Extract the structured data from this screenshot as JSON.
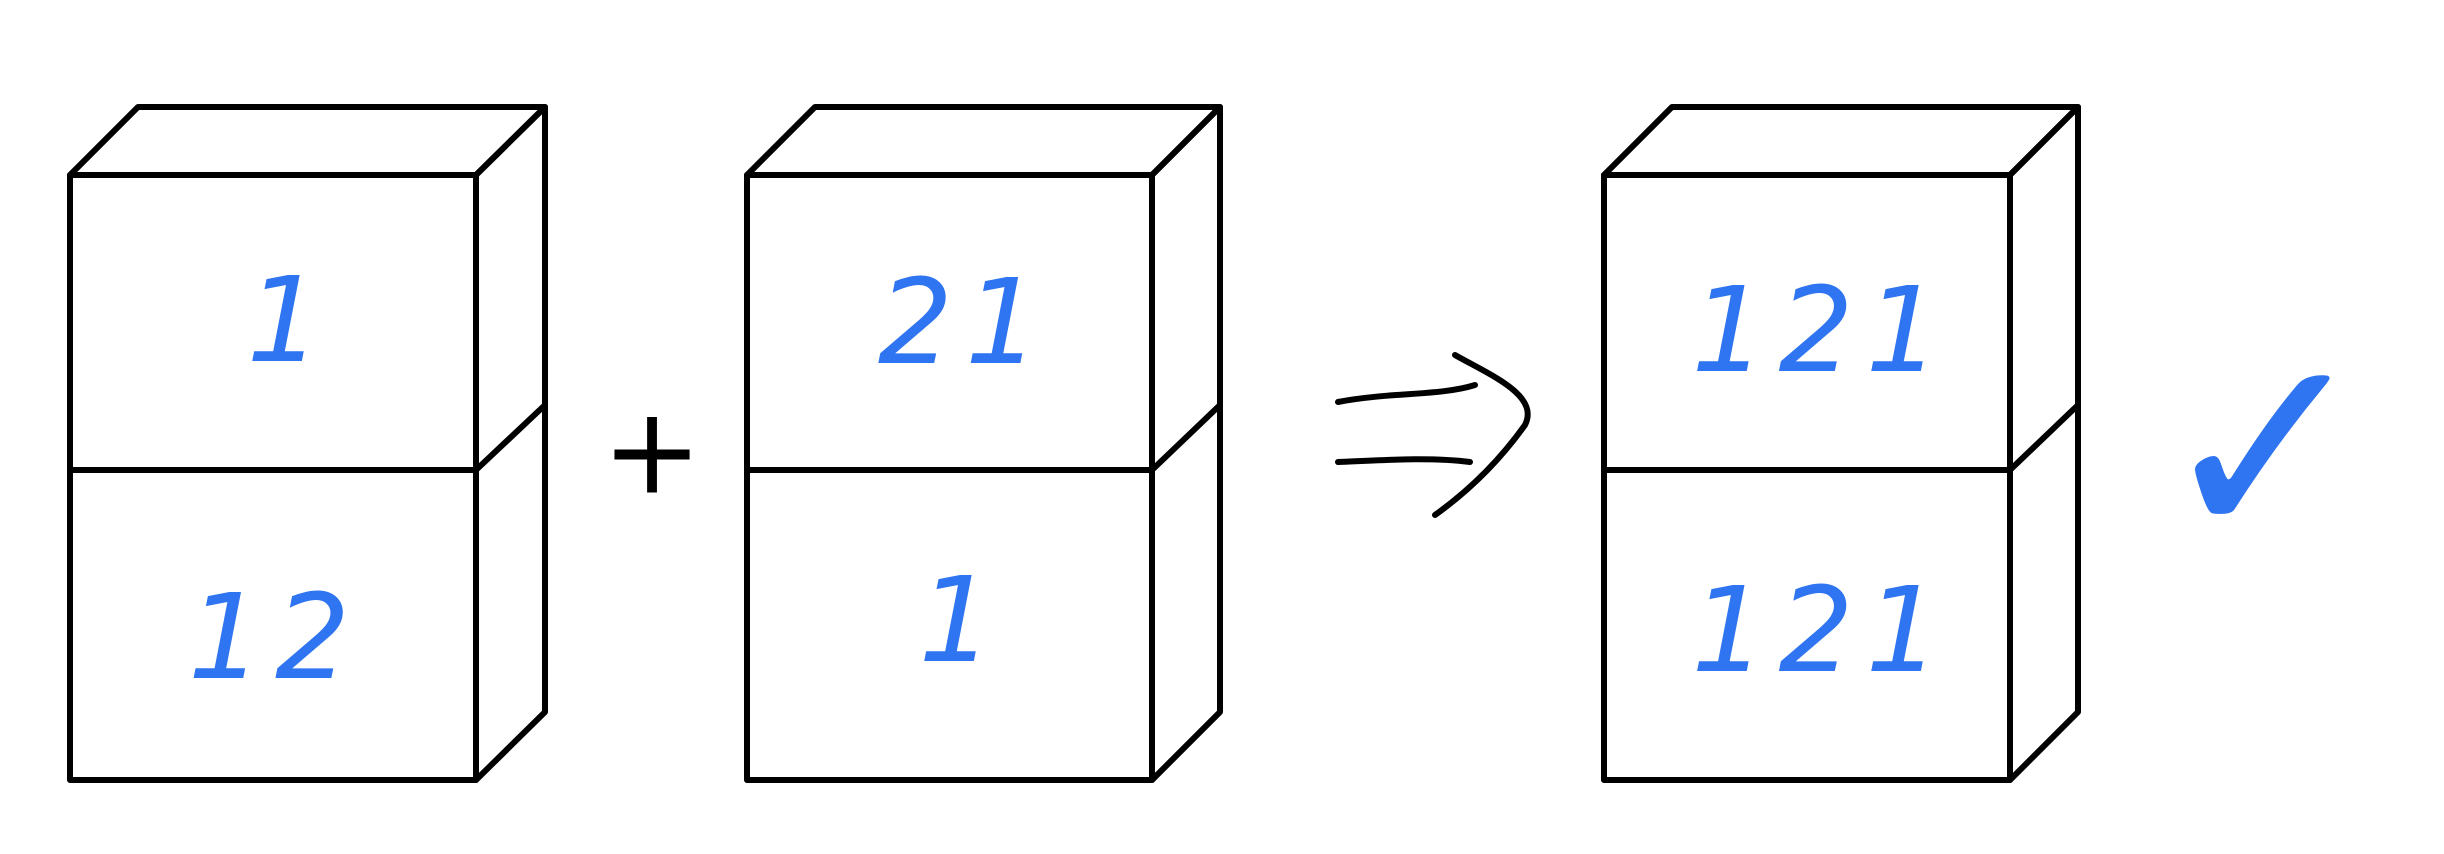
{
  "colors": {
    "ink_blue": "#2f74f0",
    "ink_black": "#000000",
    "background": "#ffffff"
  },
  "boxes": [
    {
      "top_cell": "1",
      "bottom_cell": "12"
    },
    {
      "top_cell": "21",
      "bottom_cell": "1"
    },
    {
      "top_cell": "121",
      "bottom_cell": "121"
    }
  ],
  "operators": {
    "plus": "+",
    "arrow": "⇒",
    "check": "✓"
  },
  "icons": {
    "plus": "plus-sign-icon",
    "arrow": "implies-arrow-icon",
    "check": "checkmark-icon"
  }
}
